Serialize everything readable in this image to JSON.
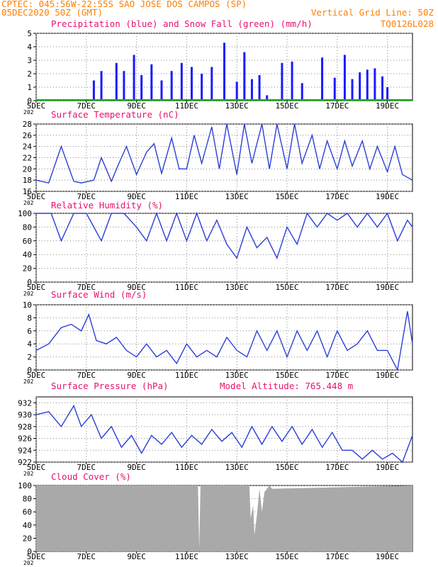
{
  "header": {
    "line1": "CPTEC:  045:56W-22:55S  SAO JOSE DOS CAMPOS (SP)",
    "line2": "05DEC2020 50Z (GMT)",
    "vgrid": "Vertical Grid Line: 50Z",
    "code": "TQ0126L028"
  },
  "colors": {
    "header": "#ff7f00",
    "title": "#e8106e",
    "line": "#2a3fd6",
    "precip": "#1a1aff",
    "snow": "#00b400",
    "cloud": "#a9a9a9"
  },
  "x_axis": {
    "ticks": [
      {
        "label": "5DEC",
        "day": 0
      },
      {
        "label": "7DEC",
        "day": 2
      },
      {
        "label": "9DEC",
        "day": 4
      },
      {
        "label": "11DEC",
        "day": 6
      },
      {
        "label": "13DEC",
        "day": 8
      },
      {
        "label": "15DEC",
        "day": 10
      },
      {
        "label": "17DEC",
        "day": 12
      },
      {
        "label": "19DEC",
        "day": 14
      }
    ],
    "year_fragment": "202"
  },
  "chart_data": [
    {
      "type": "bar",
      "id": "precip",
      "title": "Precipitation (blue) and Snow Fall (green) (mm/h)",
      "ylim": [
        0,
        5
      ],
      "yticks": [
        0,
        1,
        2,
        3,
        4,
        5
      ],
      "x": [
        2.3,
        2.6,
        3.2,
        3.5,
        3.9,
        4.2,
        4.6,
        5.0,
        5.4,
        5.8,
        6.2,
        6.6,
        7.0,
        7.5,
        8.0,
        8.3,
        8.6,
        8.9,
        9.2,
        9.8,
        10.2,
        10.6,
        11.4,
        11.9,
        12.3,
        12.6,
        12.9,
        13.2,
        13.5,
        13.8,
        14.0
      ],
      "values": [
        1.5,
        2.2,
        2.8,
        2.2,
        3.4,
        1.9,
        2.7,
        1.5,
        2.2,
        2.8,
        2.5,
        2.0,
        2.5,
        4.3,
        1.4,
        3.6,
        1.6,
        1.9,
        0.4,
        2.8,
        2.9,
        1.3,
        3.2,
        1.7,
        3.4,
        1.6,
        2.1,
        2.3,
        2.4,
        1.8,
        1.0
      ],
      "snow": 0
    },
    {
      "type": "line",
      "id": "temp",
      "title": "Surface Temperature (nC)",
      "ylim": [
        16,
        28
      ],
      "yticks": [
        16,
        18,
        20,
        22,
        24,
        26,
        28
      ],
      "x": [
        0,
        0.5,
        1,
        1.5,
        1.8,
        2.3,
        2.6,
        3.0,
        3.3,
        3.6,
        4.0,
        4.4,
        4.7,
        5.0,
        5.4,
        5.7,
        6.0,
        6.3,
        6.6,
        7.0,
        7.3,
        7.6,
        8.0,
        8.3,
        8.6,
        9.0,
        9.3,
        9.6,
        10.0,
        10.3,
        10.6,
        11.0,
        11.3,
        11.6,
        12.0,
        12.3,
        12.6,
        13.0,
        13.3,
        13.6,
        14.0,
        14.3,
        14.6,
        15.0
      ],
      "values": [
        18,
        17.5,
        24,
        17.8,
        17.5,
        18,
        22,
        17.8,
        21,
        24,
        19,
        23,
        24.5,
        19.2,
        25.5,
        20,
        20,
        26,
        21,
        27.5,
        20,
        28,
        19,
        28,
        21,
        28,
        20,
        28,
        20,
        28,
        21,
        26,
        20,
        25,
        20,
        25,
        20.5,
        25,
        20,
        24,
        19.5,
        24,
        19,
        18
      ]
    },
    {
      "type": "line",
      "id": "rh",
      "title": "Relative Humidity (%)",
      "ylim": [
        0,
        100
      ],
      "yticks": [
        0,
        20,
        40,
        60,
        80,
        100
      ],
      "x": [
        0,
        0.6,
        1,
        1.5,
        2,
        2.6,
        3,
        3.5,
        4,
        4.4,
        4.8,
        5.2,
        5.6,
        6.0,
        6.4,
        6.8,
        7.2,
        7.6,
        8,
        8.4,
        8.8,
        9.2,
        9.6,
        10,
        10.4,
        10.8,
        11.2,
        11.6,
        12,
        12.4,
        12.8,
        13.2,
        13.6,
        14,
        14.4,
        14.8,
        15
      ],
      "values": [
        100,
        100,
        60,
        100,
        100,
        60,
        100,
        100,
        80,
        60,
        100,
        60,
        100,
        60,
        100,
        60,
        90,
        55,
        35,
        80,
        50,
        65,
        35,
        80,
        55,
        100,
        80,
        100,
        90,
        100,
        80,
        100,
        80,
        100,
        60,
        90,
        80
      ]
    },
    {
      "type": "line",
      "id": "wind",
      "title": "Surface Wind (m/s)",
      "ylim": [
        0,
        10
      ],
      "yticks": [
        0,
        2,
        4,
        6,
        8,
        10
      ],
      "x": [
        0,
        0.5,
        1,
        1.4,
        1.8,
        2.1,
        2.4,
        2.8,
        3.2,
        3.6,
        4,
        4.4,
        4.8,
        5.2,
        5.6,
        6,
        6.4,
        6.8,
        7.2,
        7.6,
        8,
        8.4,
        8.8,
        9.2,
        9.6,
        10,
        10.4,
        10.8,
        11.2,
        11.6,
        12,
        12.4,
        12.8,
        13.2,
        13.6,
        14,
        14.4,
        14.8,
        15
      ],
      "values": [
        3,
        4,
        6.5,
        7,
        6,
        8.5,
        4.5,
        4,
        5,
        3,
        2,
        4,
        2,
        3,
        1,
        4,
        2,
        3,
        2,
        5,
        3,
        2,
        6,
        3,
        6,
        2,
        6,
        3,
        6,
        2,
        6,
        3,
        4,
        6,
        3,
        3,
        0,
        9,
        4
      ]
    },
    {
      "type": "line",
      "id": "press",
      "title": "Surface Pressure (hPa)",
      "ylim": [
        922,
        933
      ],
      "yticks": [
        922,
        924,
        926,
        928,
        930,
        932
      ],
      "x": [
        0,
        0.5,
        1,
        1.5,
        1.8,
        2.2,
        2.6,
        3,
        3.4,
        3.8,
        4.2,
        4.6,
        5,
        5.4,
        5.8,
        6.2,
        6.6,
        7,
        7.4,
        7.8,
        8.2,
        8.6,
        9,
        9.4,
        9.8,
        10.2,
        10.6,
        11,
        11.4,
        11.8,
        12.2,
        12.6,
        13,
        13.4,
        13.8,
        14.2,
        14.6,
        15
      ],
      "values": [
        930,
        930.5,
        928,
        931.5,
        928,
        930,
        926,
        928,
        924.5,
        926.5,
        923.5,
        926.5,
        925,
        927,
        924.5,
        926.5,
        925,
        927.5,
        925.5,
        927,
        924.5,
        928,
        925,
        928,
        925.5,
        928,
        925,
        927.5,
        924.5,
        927,
        924,
        924,
        922.5,
        924,
        922.5,
        923.5,
        922,
        926.5
      ]
    },
    {
      "type": "area",
      "id": "cloud",
      "title": "Cloud Cover (%)",
      "ylim": [
        0,
        100
      ],
      "yticks": [
        0,
        20,
        40,
        60,
        80,
        100
      ],
      "x": [
        0,
        6.45,
        6.5,
        6.55,
        7.5,
        8.5,
        8.55,
        8.65,
        8.7,
        8.8,
        8.9,
        9.0,
        9.1,
        9.3,
        9.4,
        15
      ],
      "values": [
        100,
        100,
        5,
        100,
        100,
        100,
        50,
        70,
        25,
        55,
        95,
        60,
        90,
        100,
        95,
        100
      ]
    }
  ],
  "panel_labels": {
    "altitude": "Model Altitude: 765.448 m"
  }
}
